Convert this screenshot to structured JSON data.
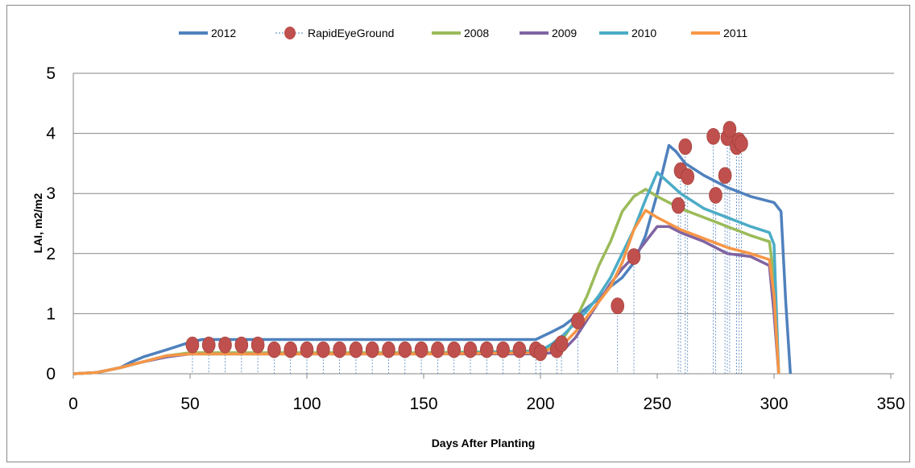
{
  "chart_data": {
    "type": "line",
    "title": "",
    "xlabel": "Days After Planting",
    "ylabel": "LAI, m2/m2",
    "xlim": [
      0,
      350
    ],
    "ylim": [
      0,
      5
    ],
    "xticks": [
      "0",
      "50",
      "100",
      "150",
      "200",
      "250",
      "300",
      "350"
    ],
    "yticks": [
      "0",
      "1",
      "2",
      "3",
      "4",
      "5"
    ],
    "grid": "horizontal",
    "legend_position": "top",
    "legend": [
      "2012",
      "RapidEyeGround",
      "2008",
      "2009",
      "2010",
      "2011"
    ],
    "series": [
      {
        "name": "2012",
        "style": "line",
        "color": "#4F81BD",
        "x": [
          0,
          10,
          20,
          25,
          30,
          40,
          48,
          55,
          100,
          150,
          198,
          205,
          210,
          215,
          220,
          225,
          230,
          235,
          240,
          245,
          250,
          255,
          258,
          262,
          270,
          280,
          290,
          300,
          303,
          305,
          307
        ],
        "y": [
          0,
          0.02,
          0.1,
          0.2,
          0.28,
          0.4,
          0.5,
          0.57,
          0.57,
          0.57,
          0.57,
          0.7,
          0.8,
          0.95,
          1.1,
          1.25,
          1.45,
          1.6,
          1.85,
          2.3,
          3.0,
          3.8,
          3.7,
          3.5,
          3.3,
          3.1,
          2.95,
          2.85,
          2.7,
          1.2,
          0
        ]
      },
      {
        "name": "2008",
        "style": "line",
        "color": "#9BBB59",
        "x": [
          0,
          10,
          20,
          30,
          40,
          50,
          100,
          150,
          200,
          205,
          210,
          215,
          220,
          225,
          230,
          235,
          240,
          245,
          250,
          260,
          270,
          280,
          290,
          298,
          300,
          302
        ],
        "y": [
          0,
          0.02,
          0.1,
          0.2,
          0.3,
          0.35,
          0.35,
          0.35,
          0.38,
          0.45,
          0.6,
          0.9,
          1.3,
          1.8,
          2.2,
          2.7,
          2.95,
          3.07,
          2.95,
          2.75,
          2.6,
          2.45,
          2.3,
          2.2,
          1.6,
          0
        ]
      },
      {
        "name": "2009",
        "style": "line",
        "color": "#8064A2",
        "x": [
          0,
          10,
          20,
          30,
          40,
          50,
          100,
          150,
          200,
          205,
          210,
          215,
          220,
          225,
          230,
          235,
          240,
          245,
          250,
          255,
          260,
          270,
          280,
          290,
          298,
          300,
          302
        ],
        "y": [
          0,
          0.02,
          0.1,
          0.2,
          0.28,
          0.33,
          0.33,
          0.33,
          0.33,
          0.35,
          0.4,
          0.6,
          0.9,
          1.2,
          1.5,
          1.75,
          1.95,
          2.2,
          2.45,
          2.45,
          2.35,
          2.2,
          2.0,
          1.95,
          1.8,
          1.0,
          0
        ]
      },
      {
        "name": "2010",
        "style": "line",
        "color": "#4BACC6",
        "x": [
          0,
          10,
          20,
          30,
          40,
          50,
          100,
          150,
          200,
          205,
          210,
          215,
          220,
          225,
          230,
          235,
          240,
          245,
          250,
          260,
          270,
          280,
          290,
          298,
          300,
          302
        ],
        "y": [
          0,
          0.02,
          0.1,
          0.2,
          0.3,
          0.33,
          0.33,
          0.33,
          0.38,
          0.5,
          0.65,
          0.85,
          1.05,
          1.3,
          1.6,
          2.0,
          2.4,
          2.9,
          3.35,
          3.0,
          2.75,
          2.6,
          2.45,
          2.35,
          2.15,
          0
        ]
      },
      {
        "name": "2011",
        "style": "line",
        "color": "#F79646",
        "x": [
          0,
          10,
          20,
          30,
          40,
          50,
          100,
          150,
          200,
          205,
          210,
          215,
          220,
          225,
          230,
          235,
          240,
          245,
          250,
          260,
          270,
          280,
          290,
          298,
          300,
          302
        ],
        "y": [
          0,
          0.02,
          0.1,
          0.2,
          0.3,
          0.33,
          0.33,
          0.33,
          0.35,
          0.42,
          0.5,
          0.7,
          0.95,
          1.2,
          1.45,
          1.85,
          2.4,
          2.72,
          2.6,
          2.4,
          2.25,
          2.1,
          2.0,
          1.9,
          1.3,
          0
        ]
      },
      {
        "name": "RapidEyeGround",
        "style": "markers",
        "color": "#C0504D",
        "x": [
          51,
          58,
          65,
          72,
          79,
          86,
          93,
          100,
          107,
          114,
          121,
          128,
          135,
          142,
          149,
          156,
          163,
          170,
          177,
          184,
          191,
          198,
          200,
          207,
          209,
          216,
          233,
          240,
          259,
          260,
          262,
          263,
          274,
          275,
          279,
          280,
          281,
          284,
          285,
          286
        ],
        "y": [
          0.48,
          0.48,
          0.48,
          0.48,
          0.48,
          0.4,
          0.4,
          0.4,
          0.4,
          0.4,
          0.4,
          0.4,
          0.4,
          0.4,
          0.4,
          0.4,
          0.4,
          0.4,
          0.4,
          0.4,
          0.4,
          0.4,
          0.35,
          0.4,
          0.5,
          0.88,
          1.13,
          1.95,
          2.8,
          3.38,
          3.78,
          3.28,
          3.95,
          2.97,
          3.3,
          3.93,
          4.07,
          3.78,
          3.88,
          3.83
        ]
      }
    ]
  }
}
